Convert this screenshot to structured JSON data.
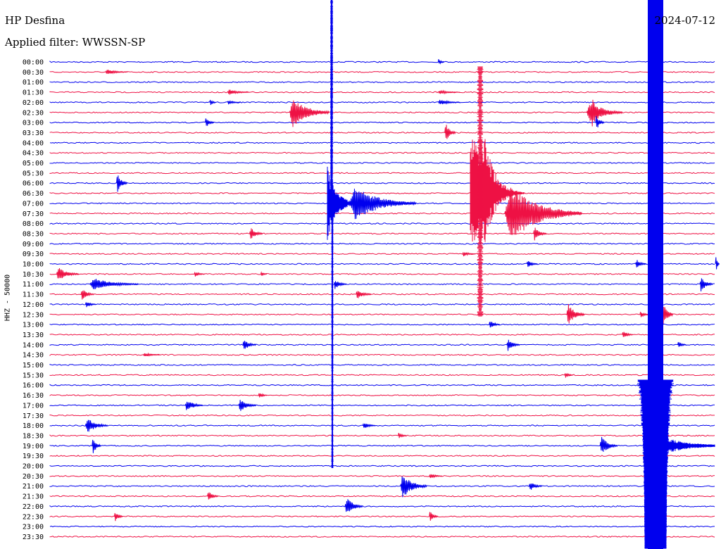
{
  "header": {
    "station": "HP Desfina",
    "filter": "Applied filter: WWSSN-SP",
    "date": "2024-07-12"
  },
  "colors": {
    "even_row": "#0000ee",
    "odd_row": "#ee1144",
    "background": "#ffffff"
  },
  "chart_data": {
    "type": "line",
    "title": "HP Desfina",
    "subtitle": "Applied filter: WWSSN-SP",
    "ylabel": "HHZ - 50000",
    "date": "2024-07-12",
    "row_labels": [
      "00:00",
      "00:30",
      "01:00",
      "01:30",
      "02:00",
      "02:30",
      "03:00",
      "03:30",
      "04:00",
      "04:30",
      "05:00",
      "05:30",
      "06:00",
      "06:30",
      "07:00",
      "07:30",
      "08:00",
      "08:30",
      "09:00",
      "09:30",
      "10:00",
      "10:30",
      "11:00",
      "11:30",
      "12:00",
      "12:30",
      "13:00",
      "13:30",
      "14:00",
      "14:30",
      "15:00",
      "15:30",
      "16:00",
      "16:30",
      "17:00",
      "17:30",
      "18:00",
      "18:30",
      "19:00",
      "19:30",
      "20:00",
      "20:30",
      "21:00",
      "21:30",
      "22:00",
      "22:30",
      "23:00",
      "23:30"
    ],
    "minutes_per_row": 30,
    "events": [
      {
        "row": 0,
        "minute": 17.5,
        "amp": 4,
        "dur": 0.3
      },
      {
        "row": 1,
        "minute": 2.5,
        "amp": 4,
        "dur": 1.0
      },
      {
        "row": 3,
        "minute": 17.5,
        "amp": 3,
        "dur": 1.0
      },
      {
        "row": 3,
        "minute": 8.0,
        "amp": 4,
        "dur": 1.0
      },
      {
        "row": 4,
        "minute": 7.2,
        "amp": 5,
        "dur": 0.3
      },
      {
        "row": 4,
        "minute": 8.0,
        "amp": 3,
        "dur": 0.6
      },
      {
        "row": 4,
        "minute": 17.5,
        "amp": 4,
        "dur": 1.0
      },
      {
        "row": 5,
        "minute": 10.8,
        "amp": 22,
        "dur": 1.8
      },
      {
        "row": 5,
        "minute": 24.2,
        "amp": 18,
        "dur": 1.6
      },
      {
        "row": 5,
        "minute": 24.4,
        "amp": 22,
        "dur": 0.6
      },
      {
        "row": 6,
        "minute": 7.0,
        "amp": 8,
        "dur": 0.4
      },
      {
        "row": 6,
        "minute": 24.6,
        "amp": 12,
        "dur": 0.4
      },
      {
        "row": 7,
        "minute": 17.8,
        "amp": 14,
        "dur": 0.5
      },
      {
        "row": 10,
        "minute": 19.0,
        "amp": 6,
        "dur": 0.5
      },
      {
        "row": 12,
        "minute": 3.0,
        "amp": 14,
        "dur": 0.5
      },
      {
        "row": 14,
        "minute": 13.5,
        "amp": 25,
        "dur": 3.0
      },
      {
        "row": 15,
        "minute": 20.5,
        "amp": 40,
        "dur": 3.5
      },
      {
        "row": 17,
        "minute": 9.0,
        "amp": 10,
        "dur": 0.6
      },
      {
        "row": 17,
        "minute": 21.8,
        "amp": 10,
        "dur": 0.6
      },
      {
        "row": 19,
        "minute": 18.6,
        "amp": 4,
        "dur": 0.6
      },
      {
        "row": 20,
        "minute": 21.5,
        "amp": 6,
        "dur": 0.5
      },
      {
        "row": 20,
        "minute": 26.4,
        "amp": 7,
        "dur": 0.5
      },
      {
        "row": 20,
        "minute": 30.0,
        "amp": 14,
        "dur": 0.6
      },
      {
        "row": 21,
        "minute": 0.3,
        "amp": 10,
        "dur": 1.0
      },
      {
        "row": 21,
        "minute": 6.5,
        "amp": 4,
        "dur": 0.5
      },
      {
        "row": 21,
        "minute": 9.5,
        "amp": 4,
        "dur": 0.3
      },
      {
        "row": 22,
        "minute": 1.8,
        "amp": 9,
        "dur": 2.2
      },
      {
        "row": 22,
        "minute": 12.8,
        "amp": 7,
        "dur": 0.6
      },
      {
        "row": 22,
        "minute": 29.3,
        "amp": 12,
        "dur": 0.6
      },
      {
        "row": 23,
        "minute": 1.4,
        "amp": 9,
        "dur": 0.6
      },
      {
        "row": 23,
        "minute": 13.8,
        "amp": 8,
        "dur": 0.7
      },
      {
        "row": 24,
        "minute": 1.6,
        "amp": 5,
        "dur": 0.5
      },
      {
        "row": 25,
        "minute": 23.3,
        "amp": 16,
        "dur": 0.8
      },
      {
        "row": 25,
        "minute": 26.6,
        "amp": 5,
        "dur": 0.4
      },
      {
        "row": 25,
        "minute": 27.6,
        "amp": 20,
        "dur": 0.5
      },
      {
        "row": 26,
        "minute": 19.8,
        "amp": 7,
        "dur": 0.5
      },
      {
        "row": 27,
        "minute": 25.8,
        "amp": 6,
        "dur": 0.5
      },
      {
        "row": 28,
        "minute": 8.7,
        "amp": 9,
        "dur": 0.6
      },
      {
        "row": 28,
        "minute": 20.6,
        "amp": 9,
        "dur": 0.6
      },
      {
        "row": 28,
        "minute": 28.3,
        "amp": 5,
        "dur": 0.4
      },
      {
        "row": 29,
        "minute": 4.2,
        "amp": 3,
        "dur": 0.8
      },
      {
        "row": 31,
        "minute": 23.2,
        "amp": 5,
        "dur": 0.4
      },
      {
        "row": 33,
        "minute": 9.4,
        "amp": 5,
        "dur": 0.4
      },
      {
        "row": 34,
        "minute": 6.1,
        "amp": 9,
        "dur": 0.8
      },
      {
        "row": 34,
        "minute": 8.5,
        "amp": 10,
        "dur": 0.8
      },
      {
        "row": 36,
        "minute": 1.6,
        "amp": 12,
        "dur": 1.0
      },
      {
        "row": 36,
        "minute": 14.1,
        "amp": 5,
        "dur": 0.6
      },
      {
        "row": 37,
        "minute": 15.7,
        "amp": 5,
        "dur": 0.4
      },
      {
        "row": 38,
        "minute": 1.9,
        "amp": 14,
        "dur": 0.4
      },
      {
        "row": 38,
        "minute": 24.8,
        "amp": 14,
        "dur": 0.8
      },
      {
        "row": 41,
        "minute": 17.1,
        "amp": 4,
        "dur": 0.6
      },
      {
        "row": 42,
        "minute": 15.8,
        "amp": 18,
        "dur": 1.2
      },
      {
        "row": 42,
        "minute": 21.6,
        "amp": 7,
        "dur": 0.6
      },
      {
        "row": 43,
        "minute": 7.1,
        "amp": 8,
        "dur": 0.5
      },
      {
        "row": 44,
        "minute": 13.3,
        "amp": 14,
        "dur": 0.8
      },
      {
        "row": 45,
        "minute": 2.9,
        "amp": 8,
        "dur": 0.4
      },
      {
        "row": 45,
        "minute": 17.1,
        "amp": 8,
        "dur": 0.4
      }
    ]
  }
}
